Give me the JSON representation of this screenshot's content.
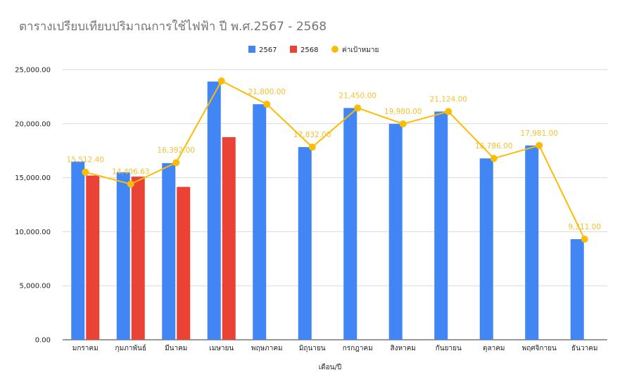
{
  "chart_data": {
    "type": "bar",
    "title": "ตารางเปรียบเทียบปริมาณการใช้ไฟฟ้า ปี พ.ศ.2567 - 2568",
    "xlabel": "เดือน/ปี",
    "ylabel": "",
    "ylim": [
      0,
      25000
    ],
    "yticks": [
      "0.00",
      "5,000.00",
      "10,000.00",
      "15,000.00",
      "20,000.00",
      "25,000.00"
    ],
    "grid": true,
    "legend_position": "top-center",
    "categories": [
      "มกราคม",
      "กุมภาพันธ์",
      "มีนาคม",
      "เมษายน",
      "พฤษภาคม",
      "มิถุนายน",
      "กรกฎาคม",
      "สิงหาคม",
      "กันยายน",
      "ตุลาคม",
      "พฤศจิกายน",
      "ธันวาคม"
    ],
    "series": [
      {
        "name": "2567",
        "kind": "bar",
        "color": "#4285f4",
        "values": [
          16500,
          15500,
          16350,
          23900,
          21800,
          17832,
          21450,
          19980,
          21124,
          16786,
          17981,
          9311
        ]
      },
      {
        "name": "2568",
        "kind": "bar",
        "color": "#ea4335",
        "values": [
          15200,
          15100,
          14150,
          18750,
          null,
          null,
          null,
          null,
          null,
          null,
          null,
          null
        ]
      },
      {
        "name": "ค่าเป้าหมาย",
        "kind": "line",
        "color": "#fbbc04",
        "values": [
          15512.4,
          14406.63,
          16392.0,
          23950,
          21800.0,
          17832.0,
          21450.0,
          19980.0,
          21124.0,
          16786.0,
          17981.0,
          9311.0
        ],
        "labels": [
          "15,512.40",
          "14,406.63",
          "16,392.00",
          "",
          "21,800.00",
          "17,832.00",
          "21,450.00",
          "19,980.00",
          "21,124.00",
          "16,786.00",
          "17,981.00",
          "9,311.00"
        ]
      }
    ]
  }
}
